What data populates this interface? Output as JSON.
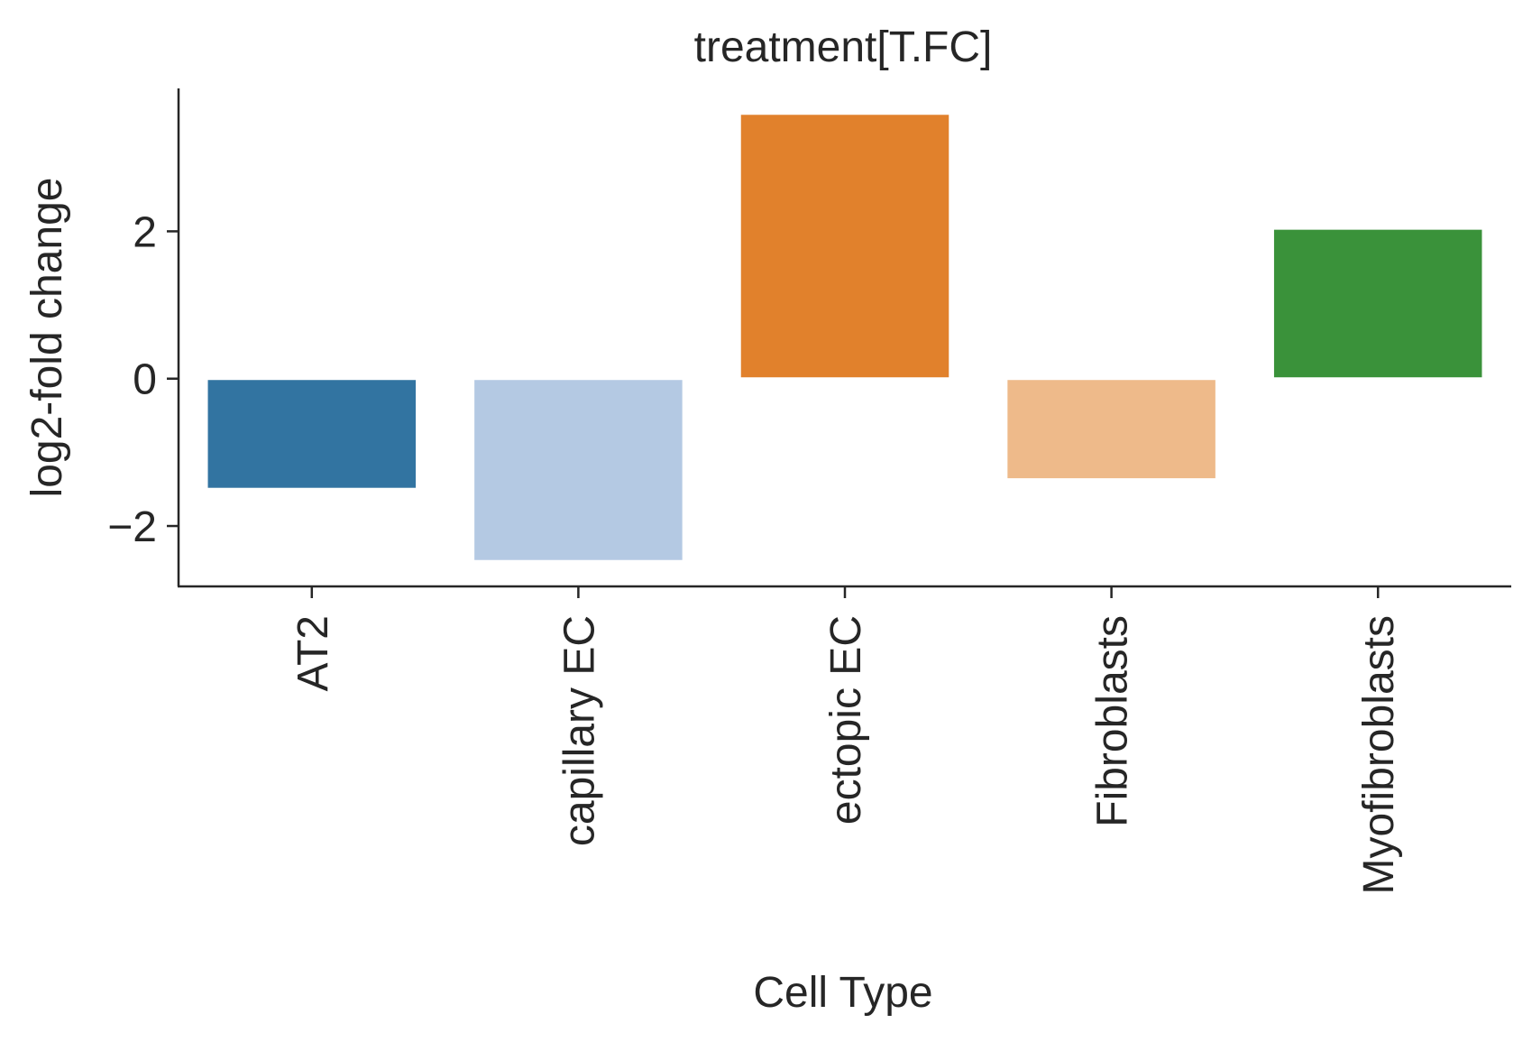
{
  "chart_data": {
    "type": "bar",
    "title": "treatment[T.FC]",
    "xlabel": "Cell Type",
    "ylabel": "log2-fold change",
    "categories": [
      "AT2",
      "capillary EC",
      "ectopic EC",
      "Fibroblasts",
      "Myofibroblasts"
    ],
    "values": [
      -1.5,
      -2.48,
      3.6,
      -1.37,
      2.04
    ],
    "colors": [
      "#3274a1",
      "#b4c9e3",
      "#e1812c",
      "#eeba8a",
      "#3a923a"
    ],
    "yticks": [
      -2,
      0,
      2
    ],
    "ytick_labels": [
      "−2",
      "0",
      "2"
    ],
    "ylim": [
      -2.82,
      3.94
    ],
    "grid": false,
    "legend": "none"
  }
}
